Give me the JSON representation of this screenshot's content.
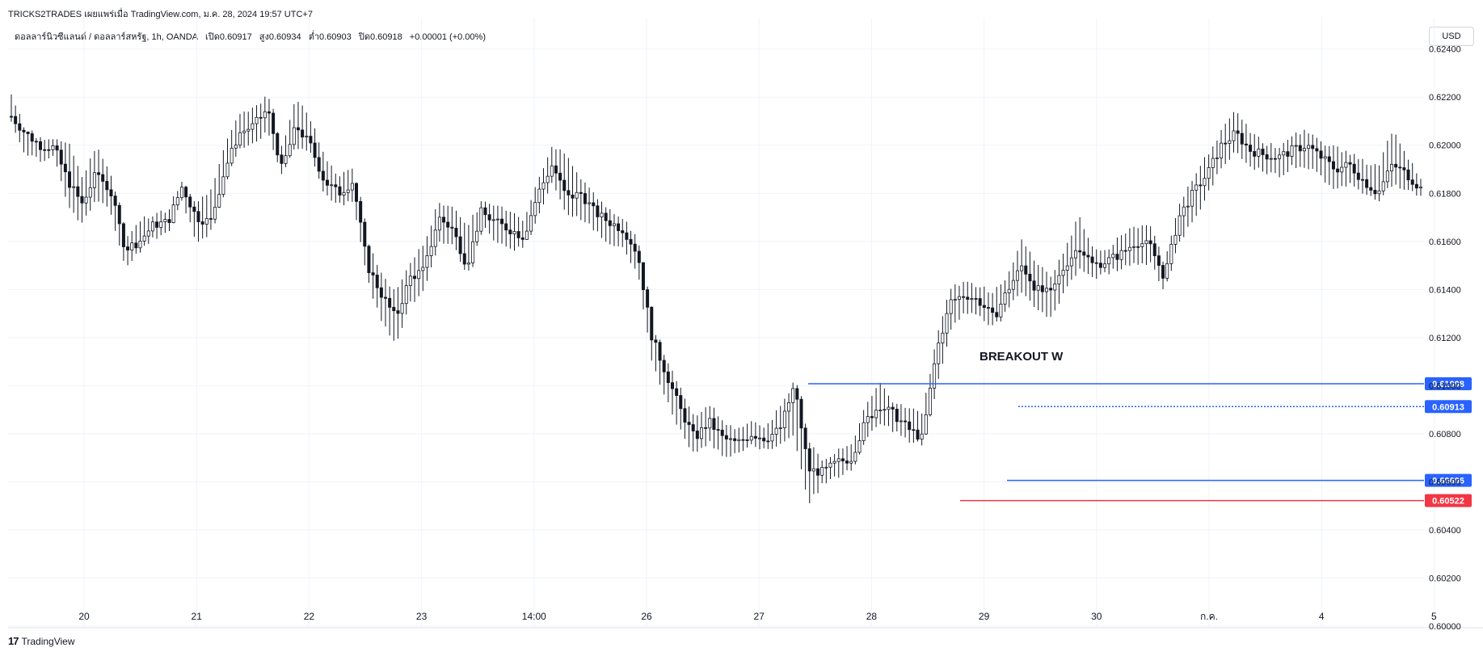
{
  "header": {
    "publish_line": "TRICKS2TRADES เผยแพร่เมื่อ TradingView.com, ม.ค. 28, 2024 19:57 UTC+7"
  },
  "symbol_bar": {
    "pair": "ดอลลาร์นิวซีแลนด์ / ดอลลาร์สหรัฐ, 1h, OANDA",
    "open": "เปิด0.60917",
    "high": "สูง0.60934",
    "low": "ต่ำ0.60903",
    "close": "ปิด0.60918",
    "change": "+0.00001 (+0.00%)"
  },
  "currency_button": "USD",
  "footer": {
    "brand": "TradingView"
  },
  "colors": {
    "candle": "#131722",
    "grid": "#f0f3fa",
    "level_blue": "#2962ff",
    "level_red": "#f23645"
  },
  "chart_data": {
    "type": "candlestick",
    "title": "",
    "price_axis_ticks": [
      "0.62400",
      "0.62200",
      "0.62000",
      "0.61800",
      "0.61600",
      "0.61400",
      "0.61200",
      "0.61000",
      "0.60800",
      "0.60600",
      "0.60400",
      "0.60200",
      "0.60000"
    ],
    "ylim": [
      0.6,
      0.6253
    ],
    "time_axis_labels": [
      "20",
      "21",
      "22",
      "23",
      "14:00",
      "26",
      "27",
      "28",
      "29",
      "30",
      "ก.ค.",
      "4",
      "5"
    ],
    "annotation": "BREAKOUT W",
    "levels": [
      {
        "price": 0.61008,
        "label": "0.61008",
        "color": "#2962ff",
        "style": "solid"
      },
      {
        "price": 0.60913,
        "label": "0.60913",
        "color": "#2962ff",
        "style": "dotted"
      },
      {
        "price": 0.60606,
        "label": "0.60606",
        "color": "#2962ff",
        "style": "solid"
      },
      {
        "price": 0.60522,
        "label": "0.60522",
        "color": "#f23645",
        "style": "solid"
      }
    ],
    "price_path": [
      [
        0.6212,
        0.622,
        0.621
      ],
      [
        0.6205,
        0.6205,
        0.6197
      ],
      [
        0.62,
        0.6201,
        0.6195
      ],
      [
        0.6199,
        0.6202,
        0.6196
      ],
      [
        0.6185,
        0.62,
        0.6175
      ],
      [
        0.6175,
        0.6186,
        0.6168
      ],
      [
        0.6189,
        0.6199,
        0.6179
      ],
      [
        0.618,
        0.6186,
        0.6173
      ],
      [
        0.6157,
        0.616,
        0.615
      ],
      [
        0.616,
        0.6168,
        0.6158
      ],
      [
        0.6167,
        0.617,
        0.6162
      ],
      [
        0.6168,
        0.6172,
        0.6164
      ],
      [
        0.6183,
        0.6185,
        0.6178
      ],
      [
        0.617,
        0.6175,
        0.616
      ],
      [
        0.6168,
        0.618,
        0.6165
      ],
      [
        0.619,
        0.62,
        0.6185
      ],
      [
        0.6205,
        0.6211,
        0.62
      ],
      [
        0.6208,
        0.6214,
        0.6202
      ],
      [
        0.6215,
        0.622,
        0.6207
      ],
      [
        0.619,
        0.6198,
        0.6188
      ],
      [
        0.6208,
        0.6219,
        0.62
      ],
      [
        0.62,
        0.621,
        0.6198
      ],
      [
        0.6185,
        0.6195,
        0.618
      ],
      [
        0.618,
        0.6186,
        0.6176
      ],
      [
        0.6185,
        0.619,
        0.6178
      ],
      [
        0.615,
        0.616,
        0.6145
      ],
      [
        0.6138,
        0.6145,
        0.6128
      ],
      [
        0.6128,
        0.6138,
        0.6118
      ],
      [
        0.6145,
        0.615,
        0.6135
      ],
      [
        0.6148,
        0.6158,
        0.614
      ],
      [
        0.617,
        0.6175,
        0.616
      ],
      [
        0.6165,
        0.6174,
        0.616
      ],
      [
        0.615,
        0.6165,
        0.6146
      ],
      [
        0.6172,
        0.6175,
        0.6168
      ],
      [
        0.6168,
        0.6174,
        0.616
      ],
      [
        0.6165,
        0.6172,
        0.6158
      ],
      [
        0.6162,
        0.6168,
        0.6158
      ],
      [
        0.618,
        0.6185,
        0.6172
      ],
      [
        0.6192,
        0.6198,
        0.6185
      ],
      [
        0.6178,
        0.6196,
        0.6172
      ],
      [
        0.618,
        0.6185,
        0.617
      ],
      [
        0.6172,
        0.6178,
        0.6166
      ],
      [
        0.6168,
        0.6172,
        0.616
      ],
      [
        0.6165,
        0.6168,
        0.6158
      ],
      [
        0.6155,
        0.616,
        0.6148
      ],
      [
        0.612,
        0.6125,
        0.611
      ],
      [
        0.6105,
        0.611,
        0.6095
      ],
      [
        0.609,
        0.6098,
        0.6082
      ],
      [
        0.6078,
        0.6085,
        0.6072
      ],
      [
        0.6085,
        0.6092,
        0.6078
      ],
      [
        0.6078,
        0.6084,
        0.6072
      ],
      [
        0.6076,
        0.608,
        0.6072
      ],
      [
        0.608,
        0.6085,
        0.6076
      ],
      [
        0.6078,
        0.6082,
        0.6074
      ],
      [
        0.6082,
        0.609,
        0.6076
      ],
      [
        0.61,
        0.6101,
        0.608
      ],
      [
        0.6065,
        0.6075,
        0.6052
      ],
      [
        0.6064,
        0.6068,
        0.606
      ],
      [
        0.6068,
        0.6072,
        0.6063
      ],
      [
        0.607,
        0.6074,
        0.6066
      ],
      [
        0.6085,
        0.6091,
        0.6078
      ],
      [
        0.6092,
        0.6101,
        0.6086
      ],
      [
        0.6088,
        0.6092,
        0.6082
      ],
      [
        0.6082,
        0.609,
        0.6078
      ],
      [
        0.6078,
        0.6087,
        0.6077
      ],
      [
        0.6115,
        0.612,
        0.61
      ],
      [
        0.6135,
        0.614,
        0.6125
      ],
      [
        0.6138,
        0.6142,
        0.6132
      ],
      [
        0.6135,
        0.614,
        0.613
      ],
      [
        0.6128,
        0.6138,
        0.6125
      ],
      [
        0.614,
        0.6145,
        0.6133
      ],
      [
        0.615,
        0.616,
        0.614
      ],
      [
        0.614,
        0.615,
        0.6132
      ],
      [
        0.6138,
        0.6145,
        0.613
      ],
      [
        0.615,
        0.6155,
        0.614
      ],
      [
        0.6158,
        0.617,
        0.615
      ],
      [
        0.615,
        0.6155,
        0.6145
      ],
      [
        0.6152,
        0.6155,
        0.6148
      ],
      [
        0.6155,
        0.6162,
        0.615
      ],
      [
        0.616,
        0.6165,
        0.6152
      ],
      [
        0.6158,
        0.6165,
        0.6152
      ],
      [
        0.6145,
        0.615,
        0.614
      ],
      [
        0.617,
        0.6175,
        0.616
      ],
      [
        0.618,
        0.6185,
        0.617
      ],
      [
        0.6188,
        0.6195,
        0.618
      ],
      [
        0.62,
        0.6205,
        0.6192
      ],
      [
        0.6205,
        0.6213,
        0.6198
      ],
      [
        0.6198,
        0.6205,
        0.6192
      ],
      [
        0.6196,
        0.62,
        0.619
      ],
      [
        0.6195,
        0.6198,
        0.6188
      ],
      [
        0.6198,
        0.6203,
        0.6192
      ],
      [
        0.62,
        0.6205,
        0.6192
      ],
      [
        0.6195,
        0.62,
        0.6188
      ],
      [
        0.619,
        0.6198,
        0.6182
      ],
      [
        0.6192,
        0.6196,
        0.6185
      ],
      [
        0.6185,
        0.6192,
        0.618
      ],
      [
        0.618,
        0.619,
        0.6178
      ],
      [
        0.6192,
        0.6205,
        0.6185
      ],
      [
        0.6188,
        0.6195,
        0.6182
      ],
      [
        0.6182,
        0.6185,
        0.618
      ]
    ]
  }
}
